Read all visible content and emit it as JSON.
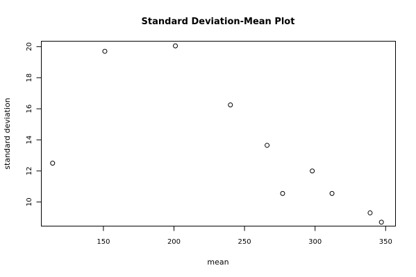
{
  "chart_data": {
    "type": "scatter",
    "title": "Standard Deviation-Mean Plot",
    "xlabel": "mean",
    "ylabel": "standard deviation",
    "xlim": [
      106,
      357
    ],
    "ylim": [
      8.45,
      20.35
    ],
    "xticks": [
      150,
      200,
      250,
      300,
      350
    ],
    "yticks": [
      10,
      12,
      14,
      16,
      18,
      20
    ],
    "grid": false,
    "legend": "none",
    "points": [
      {
        "x": 114,
        "y": 12.5
      },
      {
        "x": 151,
        "y": 19.7
      },
      {
        "x": 201,
        "y": 20.05
      },
      {
        "x": 240,
        "y": 16.25
      },
      {
        "x": 266,
        "y": 13.65
      },
      {
        "x": 277,
        "y": 10.55
      },
      {
        "x": 298,
        "y": 12.0
      },
      {
        "x": 312,
        "y": 10.55
      },
      {
        "x": 339,
        "y": 9.3
      },
      {
        "x": 347,
        "y": 8.7
      }
    ]
  }
}
